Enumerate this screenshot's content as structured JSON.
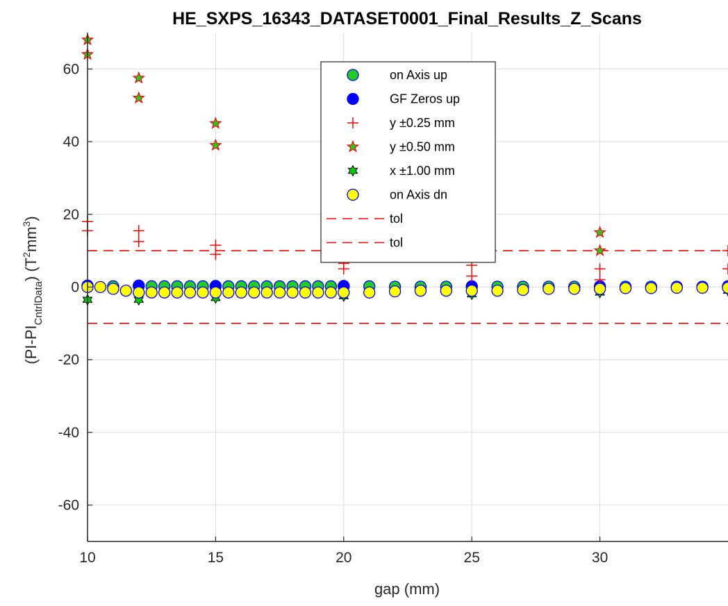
{
  "chart_data": {
    "type": "scatter",
    "title": "HE_SXPS_16343_DATASET0001_Final_Results_Z_Scans",
    "xlabel": "gap (mm)",
    "ylabel_parts": [
      "(PI-PI",
      "CntrlData",
      ") (T",
      "2",
      "mm",
      "3",
      ")"
    ],
    "xlim": [
      10,
      35
    ],
    "ylim": [
      -70,
      70
    ],
    "xticks": [
      10,
      15,
      20,
      25,
      30
    ],
    "yticks": [
      -60,
      -40,
      -20,
      0,
      20,
      40,
      60
    ],
    "grid": true,
    "legend_position": "inside-top-center",
    "series": [
      {
        "name": "on Axis up",
        "marker": "circle",
        "face": "#22cc22",
        "edge": "#0000ff",
        "x": [
          10,
          11,
          12,
          12.5,
          13,
          13.5,
          14,
          14.5,
          15,
          15.5,
          16,
          16.5,
          17,
          17.5,
          18,
          18.5,
          19,
          19.5,
          20,
          21,
          22,
          23,
          24,
          25,
          26,
          27,
          28,
          29,
          30,
          31,
          32,
          33,
          34,
          35
        ],
        "y": [
          0.3,
          0.2,
          0.3,
          0.2,
          0.2,
          0.2,
          0.2,
          0.2,
          0.2,
          0.2,
          0.2,
          0.2,
          0.2,
          0.2,
          0.2,
          0.2,
          0.2,
          0.2,
          0.2,
          0.2,
          0.1,
          0.1,
          0.1,
          0.1,
          0.1,
          0.1,
          0.1,
          0.1,
          0.1,
          0.1,
          0.1,
          0.1,
          0.1,
          0.1
        ]
      },
      {
        "name": "GF Zeros up",
        "marker": "circle",
        "face": "#0000ff",
        "edge": "#0000ff",
        "x": [
          10,
          12,
          15,
          20,
          25,
          30,
          35
        ],
        "y": [
          0.4,
          0.4,
          0.3,
          0.3,
          0.2,
          0.2,
          0.2
        ]
      },
      {
        "name": "y ±0.25 mm",
        "marker": "plus",
        "face": "none",
        "edge": "#ff0000",
        "x": [
          10,
          10,
          12,
          12,
          15,
          15,
          20,
          20,
          25,
          25,
          30,
          30,
          35,
          35
        ],
        "y": [
          18,
          15.5,
          15.5,
          12.5,
          11.5,
          9,
          6.5,
          5,
          6,
          3,
          5,
          2,
          10,
          5
        ]
      },
      {
        "name": "y ±0.50 mm",
        "marker": "star",
        "face": "#22cc22",
        "edge": "#ff0000",
        "x": [
          10,
          10,
          12,
          12,
          15,
          15,
          30,
          30
        ],
        "y": [
          68,
          64,
          57.5,
          52,
          45,
          39,
          15,
          10
        ]
      },
      {
        "name": "x ±1.00 mm",
        "marker": "hexagram",
        "face": "#00cc00",
        "edge": "#000000",
        "x": [
          10,
          12,
          15,
          20,
          25,
          30,
          35
        ],
        "y": [
          -3.5,
          -3.5,
          -3,
          -2.5,
          -2,
          -1.5,
          -1
        ]
      },
      {
        "name": "on Axis dn",
        "marker": "circle",
        "face": "#ffff00",
        "edge": "#0000ff",
        "x": [
          10,
          10.5,
          11,
          11.5,
          12,
          12.5,
          13,
          13.5,
          14,
          14.5,
          15,
          15.5,
          16,
          16.5,
          17,
          17.5,
          18,
          18.5,
          19,
          19.5,
          20,
          21,
          22,
          23,
          24,
          25,
          26,
          27,
          28,
          29,
          30,
          31,
          32,
          33,
          34,
          35
        ],
        "y": [
          0,
          0,
          -0.5,
          -1,
          -1.5,
          -1.5,
          -1.5,
          -1.5,
          -1.5,
          -1.5,
          -1.5,
          -1.5,
          -1.5,
          -1.5,
          -1.5,
          -1.5,
          -1.5,
          -1.5,
          -1.5,
          -1.5,
          -1.5,
          -1.5,
          -1.2,
          -1,
          -1,
          -1,
          -1,
          -0.8,
          -0.5,
          -0.5,
          -0.5,
          -0.3,
          -0.3,
          -0.2,
          -0.2,
          -0.2
        ]
      },
      {
        "name": "tol",
        "marker": "dashed-line",
        "edge": "#ff0000",
        "x": [
          10,
          35
        ],
        "y": [
          10,
          10
        ]
      },
      {
        "name": "tol",
        "marker": "dashed-line",
        "edge": "#ff0000",
        "x": [
          10,
          35
        ],
        "y": [
          -10,
          -10
        ]
      }
    ]
  }
}
